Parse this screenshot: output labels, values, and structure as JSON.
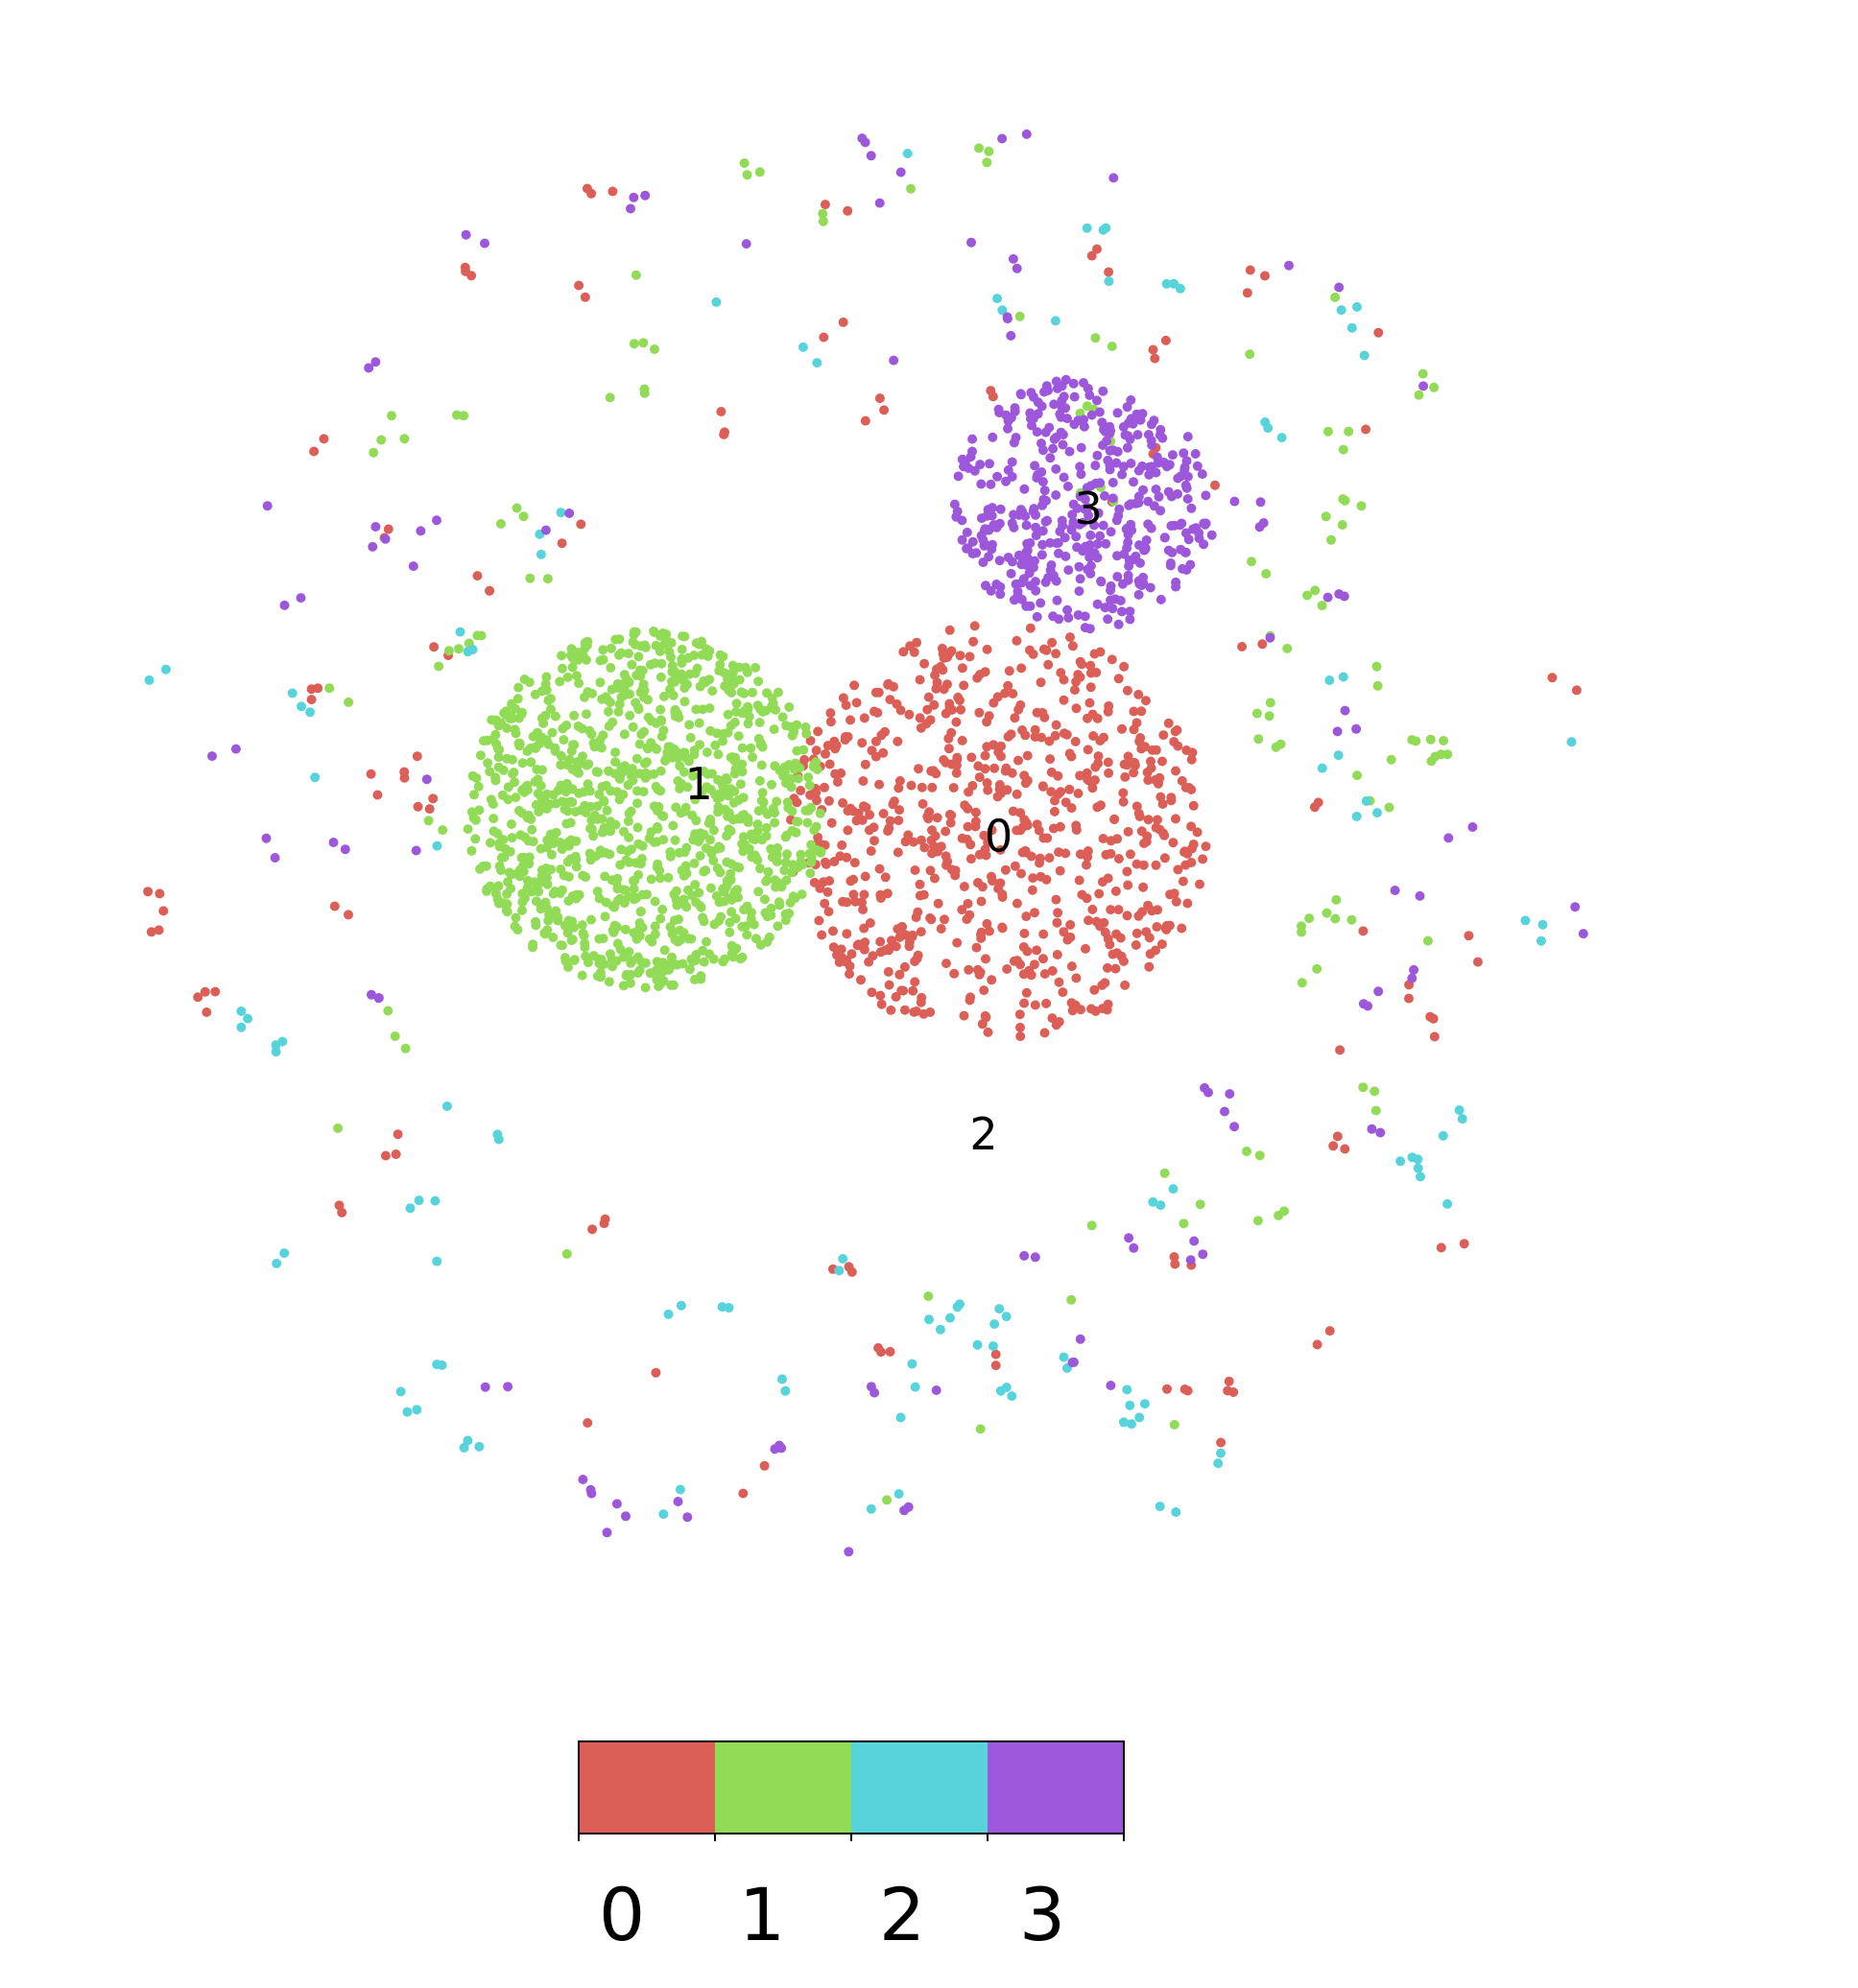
{
  "chart_data": {
    "type": "scatter",
    "title": "",
    "xlabel": "",
    "ylabel": "",
    "grid": false,
    "axes_visible": false,
    "legend": "colorbar-bottom",
    "xlim": [
      -1.05,
      1.05
    ],
    "ylim": [
      -1.05,
      1.05
    ],
    "colors": [
      "#db5f57",
      "#91db57",
      "#57d3db",
      "#9d57db"
    ],
    "cluster_labels": [
      {
        "text": "0",
        "x": 0.18,
        "y": 0.0
      },
      {
        "text": "1",
        "x": -0.22,
        "y": 0.07
      },
      {
        "text": "2",
        "x": 0.16,
        "y": -0.4
      },
      {
        "text": "3",
        "x": 0.3,
        "y": 0.44
      }
    ],
    "colorbar": {
      "categories": [
        "0",
        "1",
        "2",
        "3"
      ],
      "tick_labels": [
        "0",
        "1",
        "2",
        "3"
      ]
    },
    "series": [
      {
        "category": "0",
        "clusters": [
          {
            "cx": 0.18,
            "cy": 0.01,
            "r": 0.28,
            "n": 720
          }
        ],
        "scatter_points": 120
      },
      {
        "category": "1",
        "clusters": [
          {
            "cx": -0.29,
            "cy": 0.04,
            "r": 0.24,
            "n": 1100
          }
        ],
        "scatter_points": 120
      },
      {
        "category": "2",
        "clusters": [],
        "scatter_points": 120
      },
      {
        "category": "3",
        "clusters": [
          {
            "cx": 0.29,
            "cy": 0.45,
            "r": 0.17,
            "n": 420
          }
        ],
        "scatter_points": 110
      }
    ]
  }
}
